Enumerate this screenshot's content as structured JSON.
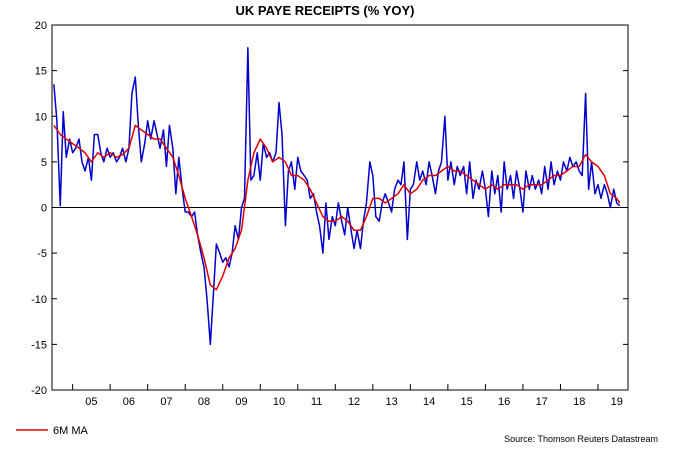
{
  "chart_data": {
    "type": "line",
    "title": "UK PAYE RECEIPTS (% YOY)",
    "xlabel": "",
    "ylabel": "",
    "ylim": [
      -20,
      20
    ],
    "xlim": [
      2004.45,
      2019.8
    ],
    "yticks": [
      -20,
      -15,
      -10,
      -5,
      0,
      5,
      10,
      15,
      20
    ],
    "year_labels": [
      "05",
      "06",
      "07",
      "08",
      "09",
      "10",
      "11",
      "12",
      "13",
      "14",
      "15",
      "16",
      "17",
      "18",
      "19"
    ],
    "year_label_positions": [
      2005.5,
      2006.5,
      2007.5,
      2008.5,
      2009.5,
      2010.5,
      2011.5,
      2012.5,
      2013.5,
      2014.5,
      2015.5,
      2016.5,
      2017.5,
      2018.5,
      2019.5
    ],
    "year_boundaries": [
      2005,
      2006,
      2007,
      2008,
      2009,
      2010,
      2011,
      2012,
      2013,
      2014,
      2015,
      2016,
      2017,
      2018,
      2019
    ],
    "zero_line": true,
    "grid": false,
    "series": [
      {
        "name": "",
        "color": "#0000cc",
        "points": [
          [
            2004.5,
            13.5
          ],
          [
            2004.58,
            9.5
          ],
          [
            2004.67,
            0.2
          ],
          [
            2004.75,
            10.5
          ],
          [
            2004.83,
            5.5
          ],
          [
            2004.92,
            7.5
          ],
          [
            2005.0,
            6.0
          ],
          [
            2005.08,
            6.5
          ],
          [
            2005.17,
            7.5
          ],
          [
            2005.25,
            5.0
          ],
          [
            2005.33,
            4.0
          ],
          [
            2005.42,
            5.5
          ],
          [
            2005.5,
            3.0
          ],
          [
            2005.58,
            8.0
          ],
          [
            2005.67,
            8.0
          ],
          [
            2005.75,
            6.0
          ],
          [
            2005.83,
            5.0
          ],
          [
            2005.92,
            6.5
          ],
          [
            2006.0,
            5.5
          ],
          [
            2006.08,
            6.0
          ],
          [
            2006.17,
            5.0
          ],
          [
            2006.25,
            5.5
          ],
          [
            2006.33,
            6.5
          ],
          [
            2006.42,
            5.0
          ],
          [
            2006.5,
            6.5
          ],
          [
            2006.58,
            12.5
          ],
          [
            2006.67,
            14.3
          ],
          [
            2006.75,
            9.0
          ],
          [
            2006.83,
            5.0
          ],
          [
            2006.92,
            7.0
          ],
          [
            2007.0,
            9.5
          ],
          [
            2007.08,
            7.5
          ],
          [
            2007.17,
            9.5
          ],
          [
            2007.25,
            8.0
          ],
          [
            2007.33,
            6.5
          ],
          [
            2007.42,
            8.5
          ],
          [
            2007.5,
            4.5
          ],
          [
            2007.58,
            9.0
          ],
          [
            2007.67,
            6.5
          ],
          [
            2007.75,
            1.5
          ],
          [
            2007.83,
            5.5
          ],
          [
            2007.92,
            2.0
          ],
          [
            2008.0,
            -0.5
          ],
          [
            2008.08,
            -0.5
          ],
          [
            2008.17,
            -1.0
          ],
          [
            2008.25,
            -0.5
          ],
          [
            2008.33,
            -3.0
          ],
          [
            2008.42,
            -5.0
          ],
          [
            2008.5,
            -6.5
          ],
          [
            2008.58,
            -10.0
          ],
          [
            2008.67,
            -15.0
          ],
          [
            2008.75,
            -9.5
          ],
          [
            2008.83,
            -4.0
          ],
          [
            2008.92,
            -5.0
          ],
          [
            2009.0,
            -6.0
          ],
          [
            2009.08,
            -5.5
          ],
          [
            2009.17,
            -6.5
          ],
          [
            2009.25,
            -5.0
          ],
          [
            2009.33,
            -2.0
          ],
          [
            2009.42,
            -3.5
          ],
          [
            2009.5,
            0.0
          ],
          [
            2009.58,
            1.0
          ],
          [
            2009.67,
            17.5
          ],
          [
            2009.75,
            3.0
          ],
          [
            2009.83,
            3.5
          ],
          [
            2009.92,
            6.0
          ],
          [
            2010.0,
            3.0
          ],
          [
            2010.08,
            7.0
          ],
          [
            2010.17,
            5.5
          ],
          [
            2010.25,
            6.0
          ],
          [
            2010.33,
            5.0
          ],
          [
            2010.42,
            6.0
          ],
          [
            2010.5,
            11.5
          ],
          [
            2010.58,
            8.0
          ],
          [
            2010.67,
            -2.0
          ],
          [
            2010.75,
            4.0
          ],
          [
            2010.83,
            5.0
          ],
          [
            2010.92,
            2.0
          ],
          [
            2011.0,
            5.5
          ],
          [
            2011.08,
            4.0
          ],
          [
            2011.17,
            3.5
          ],
          [
            2011.25,
            3.0
          ],
          [
            2011.33,
            1.0
          ],
          [
            2011.42,
            1.5
          ],
          [
            2011.5,
            -0.5
          ],
          [
            2011.58,
            -2.0
          ],
          [
            2011.67,
            -5.0
          ],
          [
            2011.75,
            0.5
          ],
          [
            2011.83,
            -3.5
          ],
          [
            2011.92,
            -1.0
          ],
          [
            2012.0,
            -2.0
          ],
          [
            2012.08,
            0.5
          ],
          [
            2012.17,
            -1.5
          ],
          [
            2012.25,
            -3.0
          ],
          [
            2012.33,
            0.0
          ],
          [
            2012.42,
            -2.5
          ],
          [
            2012.5,
            -4.5
          ],
          [
            2012.58,
            -2.5
          ],
          [
            2012.67,
            -4.5
          ],
          [
            2012.75,
            -1.5
          ],
          [
            2012.83,
            0.5
          ],
          [
            2012.92,
            5.0
          ],
          [
            2013.0,
            3.5
          ],
          [
            2013.08,
            -1.0
          ],
          [
            2013.17,
            -1.5
          ],
          [
            2013.25,
            0.5
          ],
          [
            2013.33,
            1.5
          ],
          [
            2013.42,
            0.5
          ],
          [
            2013.5,
            -0.5
          ],
          [
            2013.58,
            2.0
          ],
          [
            2013.67,
            3.0
          ],
          [
            2013.75,
            2.5
          ],
          [
            2013.83,
            5.0
          ],
          [
            2013.92,
            -3.5
          ],
          [
            2014.0,
            2.0
          ],
          [
            2014.08,
            2.5
          ],
          [
            2014.17,
            5.0
          ],
          [
            2014.25,
            3.0
          ],
          [
            2014.33,
            4.0
          ],
          [
            2014.42,
            2.5
          ],
          [
            2014.5,
            5.0
          ],
          [
            2014.58,
            3.5
          ],
          [
            2014.67,
            1.5
          ],
          [
            2014.75,
            4.0
          ],
          [
            2014.83,
            5.0
          ],
          [
            2014.92,
            10.0
          ],
          [
            2015.0,
            3.0
          ],
          [
            2015.08,
            5.0
          ],
          [
            2015.17,
            2.5
          ],
          [
            2015.25,
            4.5
          ],
          [
            2015.33,
            3.5
          ],
          [
            2015.42,
            4.5
          ],
          [
            2015.5,
            1.5
          ],
          [
            2015.58,
            5.0
          ],
          [
            2015.67,
            1.0
          ],
          [
            2015.75,
            3.0
          ],
          [
            2015.83,
            2.0
          ],
          [
            2015.92,
            4.0
          ],
          [
            2016.0,
            2.0
          ],
          [
            2016.08,
            -1.0
          ],
          [
            2016.17,
            4.0
          ],
          [
            2016.25,
            1.5
          ],
          [
            2016.33,
            3.5
          ],
          [
            2016.42,
            -0.5
          ],
          [
            2016.5,
            5.0
          ],
          [
            2016.58,
            2.0
          ],
          [
            2016.67,
            3.5
          ],
          [
            2016.75,
            1.0
          ],
          [
            2016.83,
            4.0
          ],
          [
            2016.92,
            2.0
          ],
          [
            2017.0,
            -0.5
          ],
          [
            2017.08,
            4.0
          ],
          [
            2017.17,
            2.0
          ],
          [
            2017.25,
            3.5
          ],
          [
            2017.33,
            2.0
          ],
          [
            2017.42,
            3.0
          ],
          [
            2017.5,
            1.5
          ],
          [
            2017.58,
            4.5
          ],
          [
            2017.67,
            2.0
          ],
          [
            2017.75,
            5.0
          ],
          [
            2017.83,
            2.5
          ],
          [
            2017.92,
            4.0
          ],
          [
            2018.0,
            3.0
          ],
          [
            2018.08,
            5.0
          ],
          [
            2018.17,
            4.0
          ],
          [
            2018.25,
            5.5
          ],
          [
            2018.33,
            4.5
          ],
          [
            2018.42,
            5.0
          ],
          [
            2018.5,
            4.0
          ],
          [
            2018.58,
            3.5
          ],
          [
            2018.67,
            12.5
          ],
          [
            2018.75,
            2.0
          ],
          [
            2018.83,
            5.0
          ],
          [
            2018.92,
            1.5
          ],
          [
            2019.0,
            2.5
          ],
          [
            2019.08,
            1.0
          ],
          [
            2019.17,
            2.5
          ],
          [
            2019.25,
            1.5
          ],
          [
            2019.33,
            0.0
          ],
          [
            2019.42,
            2.0
          ],
          [
            2019.5,
            0.5
          ],
          [
            2019.58,
            0.2
          ]
        ]
      },
      {
        "name": "6M MA",
        "color": "#dd0000",
        "points": [
          [
            2004.5,
            9.0
          ],
          [
            2004.67,
            8.0
          ],
          [
            2004.83,
            7.5
          ],
          [
            2005.0,
            7.0
          ],
          [
            2005.17,
            6.5
          ],
          [
            2005.33,
            6.0
          ],
          [
            2005.5,
            5.0
          ],
          [
            2005.67,
            6.0
          ],
          [
            2005.83,
            5.5
          ],
          [
            2006.0,
            6.0
          ],
          [
            2006.17,
            5.5
          ],
          [
            2006.33,
            5.8
          ],
          [
            2006.5,
            6.5
          ],
          [
            2006.67,
            9.0
          ],
          [
            2006.83,
            8.5
          ],
          [
            2007.0,
            8.0
          ],
          [
            2007.17,
            7.5
          ],
          [
            2007.33,
            7.5
          ],
          [
            2007.5,
            6.5
          ],
          [
            2007.67,
            5.5
          ],
          [
            2007.83,
            3.5
          ],
          [
            2008.0,
            1.0
          ],
          [
            2008.17,
            -1.0
          ],
          [
            2008.33,
            -3.0
          ],
          [
            2008.5,
            -5.5
          ],
          [
            2008.67,
            -8.5
          ],
          [
            2008.83,
            -9.0
          ],
          [
            2009.0,
            -7.5
          ],
          [
            2009.17,
            -5.5
          ],
          [
            2009.33,
            -4.5
          ],
          [
            2009.5,
            -2.5
          ],
          [
            2009.67,
            3.0
          ],
          [
            2009.83,
            6.0
          ],
          [
            2010.0,
            7.5
          ],
          [
            2010.17,
            6.5
          ],
          [
            2010.33,
            5.0
          ],
          [
            2010.5,
            5.5
          ],
          [
            2010.67,
            5.0
          ],
          [
            2010.83,
            3.5
          ],
          [
            2011.0,
            3.5
          ],
          [
            2011.17,
            3.0
          ],
          [
            2011.33,
            2.0
          ],
          [
            2011.5,
            0.5
          ],
          [
            2011.67,
            -1.0
          ],
          [
            2011.83,
            -1.5
          ],
          [
            2012.0,
            -1.5
          ],
          [
            2012.17,
            -1.0
          ],
          [
            2012.33,
            -1.5
          ],
          [
            2012.5,
            -2.5
          ],
          [
            2012.67,
            -2.5
          ],
          [
            2012.83,
            -1.0
          ],
          [
            2013.0,
            1.0
          ],
          [
            2013.17,
            1.0
          ],
          [
            2013.33,
            0.5
          ],
          [
            2013.5,
            1.0
          ],
          [
            2013.67,
            1.5
          ],
          [
            2013.83,
            2.5
          ],
          [
            2014.0,
            1.5
          ],
          [
            2014.17,
            2.0
          ],
          [
            2014.33,
            3.0
          ],
          [
            2014.5,
            3.5
          ],
          [
            2014.67,
            3.5
          ],
          [
            2014.83,
            4.0
          ],
          [
            2015.0,
            4.5
          ],
          [
            2015.17,
            4.0
          ],
          [
            2015.33,
            4.0
          ],
          [
            2015.5,
            3.5
          ],
          [
            2015.67,
            3.0
          ],
          [
            2015.83,
            2.5
          ],
          [
            2016.0,
            2.0
          ],
          [
            2016.17,
            2.5
          ],
          [
            2016.33,
            2.0
          ],
          [
            2016.5,
            2.5
          ],
          [
            2016.67,
            2.5
          ],
          [
            2016.83,
            2.5
          ],
          [
            2017.0,
            2.0
          ],
          [
            2017.17,
            2.5
          ],
          [
            2017.33,
            2.5
          ],
          [
            2017.5,
            2.5
          ],
          [
            2017.67,
            3.0
          ],
          [
            2017.83,
            3.5
          ],
          [
            2018.0,
            3.5
          ],
          [
            2018.17,
            4.0
          ],
          [
            2018.33,
            4.5
          ],
          [
            2018.5,
            4.5
          ],
          [
            2018.67,
            5.8
          ],
          [
            2018.83,
            5.0
          ],
          [
            2019.0,
            4.5
          ],
          [
            2019.17,
            3.5
          ],
          [
            2019.33,
            1.5
          ],
          [
            2019.5,
            1.0
          ],
          [
            2019.58,
            0.5
          ]
        ]
      }
    ],
    "legend": {
      "position": "bottom-left",
      "entries": [
        {
          "name": "6M MA",
          "color": "#dd0000"
        }
      ]
    },
    "source": "Source: Thomson Reuters Datastream"
  }
}
